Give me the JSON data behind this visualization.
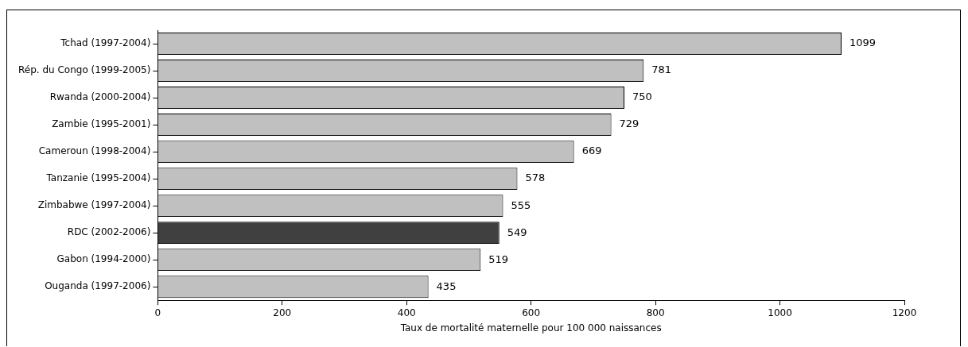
{
  "chart_data": {
    "type": "bar",
    "orientation": "horizontal",
    "xlabel": "Taux de mortalité maternelle pour 100 000 naissances",
    "categories": [
      "Tchad (1997-2004)",
      "Rép. du Congo (1999-2005)",
      "Rwanda (2000-2004)",
      "Zambie (1995-2001)",
      "Cameroun (1998-2004)",
      "Tanzanie (1995-2004)",
      "Zimbabwe (1997-2004)",
      "RDC (2002-2006)",
      "Gabon (1994-2000)",
      "Ouganda (1997-2006)"
    ],
    "values": [
      1099,
      781,
      750,
      729,
      669,
      578,
      555,
      549,
      519,
      435
    ],
    "colors": [
      "#c0c0c0",
      "#c0c0c0",
      "#c0c0c0",
      "#c0c0c0",
      "#c0c0c0",
      "#c0c0c0",
      "#c0c0c0",
      "#404040",
      "#c0c0c0",
      "#c0c0c0"
    ],
    "xlim": [
      0,
      1200
    ],
    "xticks": [
      0,
      200,
      400,
      600,
      800,
      1000,
      1200
    ],
    "grid": false,
    "legend": false,
    "data_labels": true
  }
}
